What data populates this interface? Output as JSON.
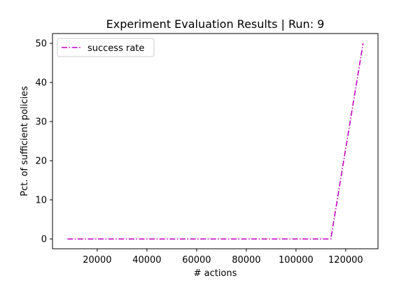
{
  "chart_data": {
    "type": "line",
    "title": "Experiment Evaluation Results | Run: 9",
    "xlabel": "# actions",
    "ylabel": "Pct. of sufficient policies",
    "xlim": [
      2000,
      133000
    ],
    "ylim": [
      -2.5,
      52.5
    ],
    "xticks": [
      20000,
      40000,
      60000,
      80000,
      100000,
      120000
    ],
    "xtick_labels": [
      "20000",
      "40000",
      "60000",
      "80000",
      "100000",
      "120000"
    ],
    "yticks": [
      0,
      10,
      20,
      30,
      40,
      50
    ],
    "ytick_labels": [
      "0",
      "10",
      "20",
      "30",
      "40",
      "50"
    ],
    "grid": false,
    "legend_position": "upper-left",
    "series": [
      {
        "name": "success rate",
        "color": "#bf00bf",
        "linestyle": "dashdot",
        "x": [
          8000,
          114000,
          127000
        ],
        "y": [
          0,
          0,
          50
        ]
      }
    ]
  }
}
